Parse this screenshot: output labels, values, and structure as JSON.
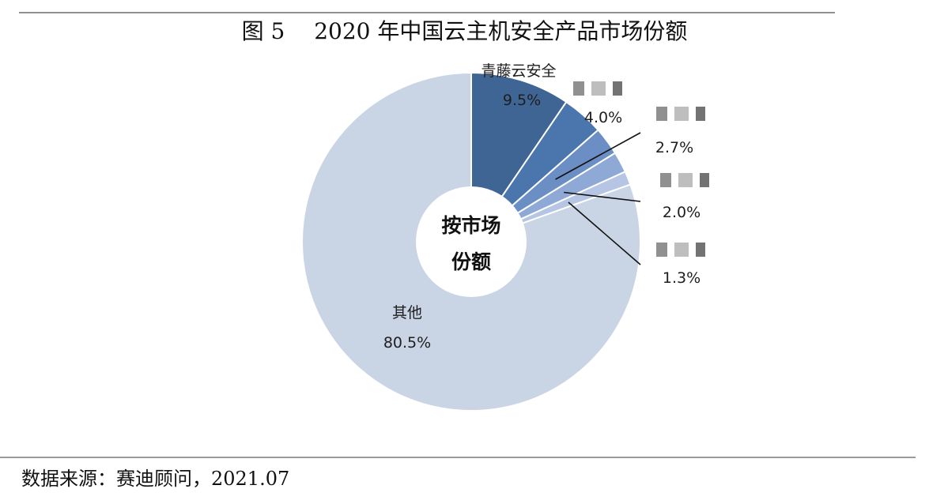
{
  "title": "图 5　 2020 年中国云主机安全产品市场份额",
  "source": "数据来源：赛迪顾问，2021.07",
  "chart_data": {
    "type": "pie",
    "donut": true,
    "center_label_line1": "按市场",
    "center_label_line2": "份额",
    "slices": [
      {
        "name": "青藤云安全",
        "value": 9.5,
        "display": "9.5%",
        "color": "#3f6594",
        "name_redacted": false
      },
      {
        "name": "",
        "value": 4.0,
        "display": "4.0%",
        "color": "#4a76ad",
        "name_redacted": true
      },
      {
        "name": "",
        "value": 2.7,
        "display": "2.7%",
        "color": "#6b8fc4",
        "name_redacted": true
      },
      {
        "name": "",
        "value": 2.0,
        "display": "2.0%",
        "color": "#8ea9d6",
        "name_redacted": true
      },
      {
        "name": "",
        "value": 1.3,
        "display": "1.3%",
        "color": "#b5c5e3",
        "name_redacted": true
      },
      {
        "name": "其他",
        "value": 80.5,
        "display": "80.5%",
        "color": "#c9d4e5",
        "name_redacted": false
      }
    ]
  }
}
